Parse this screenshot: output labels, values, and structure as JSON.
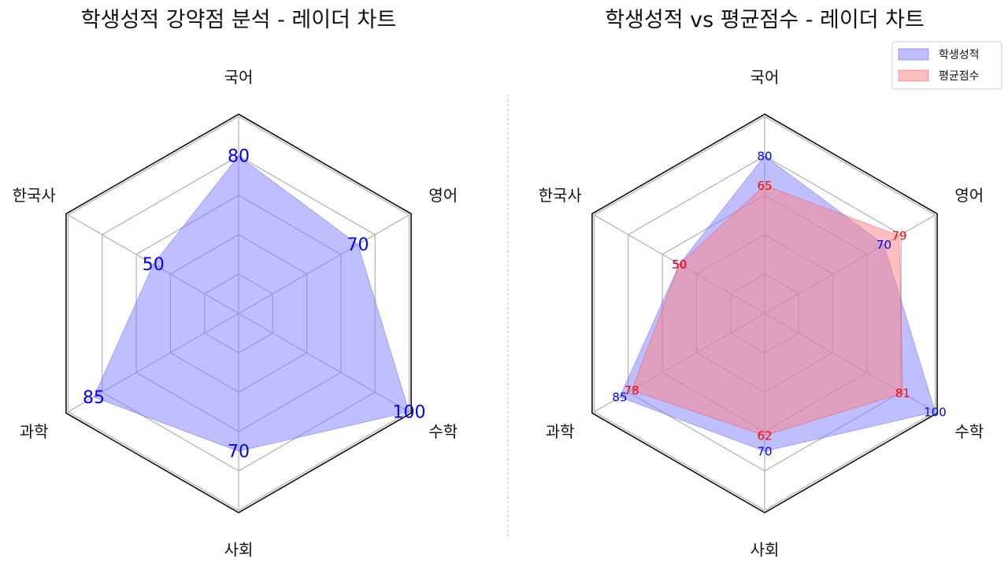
{
  "chart_data": [
    {
      "type": "radar",
      "title": "학생성적 강약점 분석 - 레이더 차트",
      "categories": [
        "국어",
        "영어",
        "수학",
        "사회",
        "과학",
        "한국사"
      ],
      "rlim": [
        0,
        100
      ],
      "grid": true,
      "series": [
        {
          "name": "학생성적",
          "values": [
            80,
            70,
            100,
            70,
            85,
            50
          ],
          "color": "#0000ff",
          "fill": "#8080ff"
        }
      ]
    },
    {
      "type": "radar",
      "title": "학생성적 vs 평균점수 - 레이더 차트",
      "categories": [
        "국어",
        "영어",
        "수학",
        "사회",
        "과학",
        "한국사"
      ],
      "rlim": [
        0,
        100
      ],
      "grid": true,
      "legend_position": "top-right",
      "series": [
        {
          "name": "학생성적",
          "values": [
            80,
            70,
            100,
            70,
            85,
            50
          ],
          "color": "#0000ff",
          "fill": "#8080ff"
        },
        {
          "name": "평균점수",
          "values": [
            65,
            79,
            81,
            62,
            78,
            50
          ],
          "color": "#ff0000",
          "fill": "#ff8080"
        }
      ]
    }
  ]
}
